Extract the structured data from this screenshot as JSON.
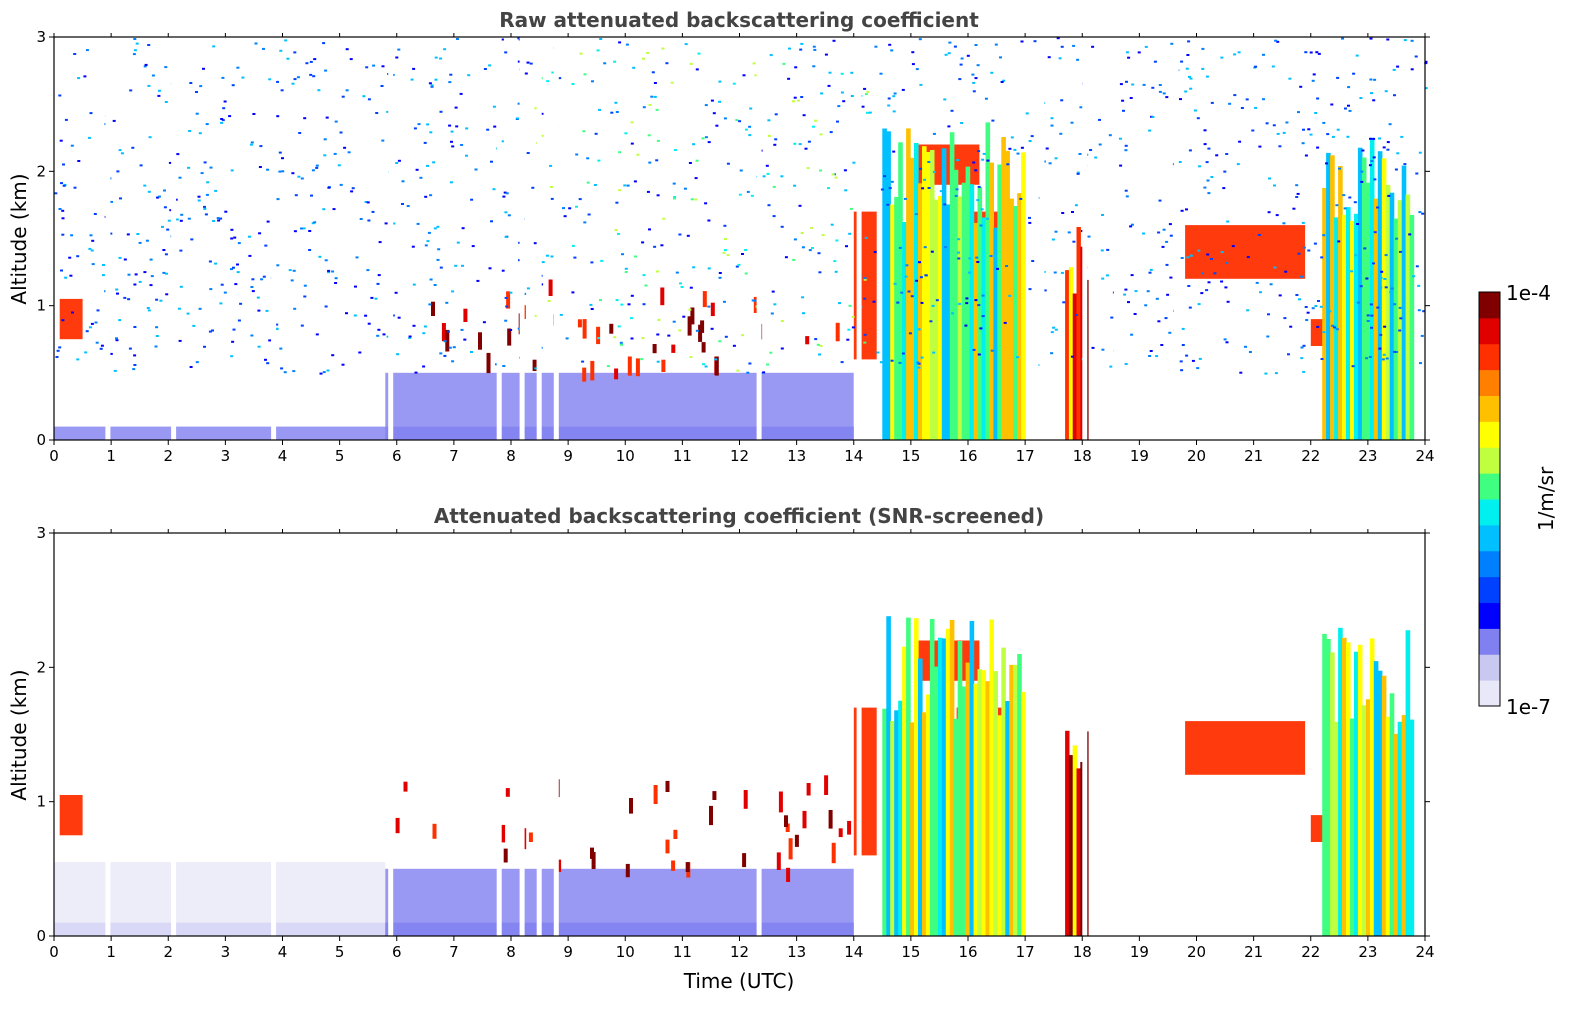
{
  "chart_data": [
    {
      "type": "heatmap",
      "title": "Raw attenuated backscattering coefficient",
      "xlabel": "",
      "ylabel": "Altitude (km)",
      "xlim": [
        0,
        24
      ],
      "ylim": [
        0,
        3
      ],
      "x_ticks": [
        "0",
        "1",
        "2",
        "3",
        "4",
        "5",
        "6",
        "7",
        "8",
        "9",
        "10",
        "11",
        "12",
        "13",
        "14",
        "15",
        "16",
        "17",
        "18",
        "19",
        "20",
        "21",
        "22",
        "23",
        "24"
      ],
      "y_ticks": [
        "0",
        "1",
        "2",
        "3"
      ],
      "x_unit": "hours UTC",
      "y_unit": "km",
      "screened": false,
      "gaps_hours": [
        0.9,
        2.05,
        3.8,
        5.85,
        7.75,
        8.15,
        8.45,
        8.75,
        12.3,
        14.05,
        17.25,
        18.0,
        18.55,
        19.6
      ],
      "features": [
        {
          "kind": "surface_layer",
          "x": [
            0,
            14
          ],
          "y": [
            0,
            0.1
          ],
          "level": "weak"
        },
        {
          "kind": "aerosol_layer",
          "x": [
            5.8,
            14
          ],
          "y": [
            0,
            0.5
          ],
          "level": "weak"
        },
        {
          "kind": "cloud",
          "x": [
            0.1,
            0.5
          ],
          "y": [
            0.75,
            1.05
          ],
          "level": "strong"
        },
        {
          "kind": "cloud_fragments",
          "x": [
            5.9,
            13.9
          ],
          "y": [
            0.5,
            1.2
          ],
          "level": "strong"
        },
        {
          "kind": "cloud",
          "x": [
            14.0,
            14.4
          ],
          "y": [
            0.6,
            1.7
          ],
          "level": "strong"
        },
        {
          "kind": "cloud",
          "x": [
            15.1,
            16.2
          ],
          "y": [
            1.9,
            2.2
          ],
          "level": "strong"
        },
        {
          "kind": "cloud",
          "x": [
            15.8,
            17.0
          ],
          "y": [
            1.45,
            1.7
          ],
          "level": "strong"
        },
        {
          "kind": "precipitation",
          "x": [
            14.5,
            17.0
          ],
          "y": [
            0,
            2.4
          ],
          "level": "medium"
        },
        {
          "kind": "precipitation",
          "x": [
            17.7,
            18.1
          ],
          "y": [
            0,
            1.6
          ],
          "level": "strong"
        },
        {
          "kind": "cloud",
          "x": [
            19.8,
            21.9
          ],
          "y": [
            1.2,
            1.6
          ],
          "level": "strong"
        },
        {
          "kind": "cloud",
          "x": [
            22.0,
            23.0
          ],
          "y": [
            0.7,
            0.9
          ],
          "level": "strong"
        },
        {
          "kind": "precipitation",
          "x": [
            22.2,
            23.8
          ],
          "y": [
            0,
            2.3
          ],
          "level": "medium"
        },
        {
          "kind": "noise",
          "x": [
            0,
            24
          ],
          "y": [
            0.5,
            3.0
          ],
          "level": "noise"
        }
      ]
    },
    {
      "type": "heatmap",
      "title": "Attenuated backscattering coefficient (SNR-screened)",
      "xlabel": "Time (UTC)",
      "ylabel": "Altitude (km)",
      "xlim": [
        0,
        24
      ],
      "ylim": [
        0,
        3
      ],
      "x_ticks": [
        "0",
        "1",
        "2",
        "3",
        "4",
        "5",
        "6",
        "7",
        "8",
        "9",
        "10",
        "11",
        "12",
        "13",
        "14",
        "15",
        "16",
        "17",
        "18",
        "19",
        "20",
        "21",
        "22",
        "23",
        "24"
      ],
      "y_ticks": [
        "0",
        "1",
        "2",
        "3"
      ],
      "x_unit": "hours UTC",
      "y_unit": "km",
      "screened": true,
      "gaps_hours": [
        0.9,
        2.05,
        3.8,
        5.85,
        7.75,
        8.15,
        8.45,
        8.75,
        12.3,
        14.05,
        17.25,
        18.0,
        18.55,
        19.6
      ],
      "features": [
        {
          "kind": "surface_layer",
          "x": [
            0,
            14
          ],
          "y": [
            0,
            0.1
          ],
          "level": "weak"
        },
        {
          "kind": "aerosol_layer",
          "x": [
            0,
            5.8
          ],
          "y": [
            0,
            0.55
          ],
          "level": "faint"
        },
        {
          "kind": "aerosol_layer",
          "x": [
            5.8,
            14
          ],
          "y": [
            0,
            0.5
          ],
          "level": "weak"
        },
        {
          "kind": "cloud",
          "x": [
            0.1,
            0.5
          ],
          "y": [
            0.75,
            1.05
          ],
          "level": "strong"
        },
        {
          "kind": "cloud_fragments",
          "x": [
            5.9,
            13.9
          ],
          "y": [
            0.5,
            1.2
          ],
          "level": "strong"
        },
        {
          "kind": "cloud",
          "x": [
            14.0,
            14.4
          ],
          "y": [
            0.6,
            1.7
          ],
          "level": "strong"
        },
        {
          "kind": "cloud",
          "x": [
            15.1,
            16.2
          ],
          "y": [
            1.9,
            2.2
          ],
          "level": "strong"
        },
        {
          "kind": "cloud",
          "x": [
            15.8,
            17.0
          ],
          "y": [
            1.45,
            1.7
          ],
          "level": "strong"
        },
        {
          "kind": "precipitation",
          "x": [
            14.5,
            17.0
          ],
          "y": [
            0,
            2.4
          ],
          "level": "medium"
        },
        {
          "kind": "precipitation",
          "x": [
            17.7,
            18.1
          ],
          "y": [
            0,
            1.6
          ],
          "level": "strong"
        },
        {
          "kind": "cloud",
          "x": [
            19.8,
            21.9
          ],
          "y": [
            1.2,
            1.6
          ],
          "level": "strong"
        },
        {
          "kind": "cloud",
          "x": [
            22.0,
            23.0
          ],
          "y": [
            0.7,
            0.9
          ],
          "level": "strong"
        },
        {
          "kind": "precipitation",
          "x": [
            22.2,
            23.8
          ],
          "y": [
            0,
            2.3
          ],
          "level": "medium"
        }
      ]
    }
  ],
  "colorbar": {
    "label": "1/m/sr",
    "min_label": "1e-7",
    "max_label": "1e-4",
    "scale": "log",
    "range": [
      1e-07,
      0.0001
    ],
    "colormap": [
      "#e8e8f8",
      "#c8c8f0",
      "#8080f0",
      "#0000ff",
      "#0040ff",
      "#0080ff",
      "#00c0ff",
      "#00f0f0",
      "#40ff80",
      "#c0ff40",
      "#ffff00",
      "#ffc000",
      "#ff8000",
      "#ff3000",
      "#e00000",
      "#800000"
    ]
  }
}
